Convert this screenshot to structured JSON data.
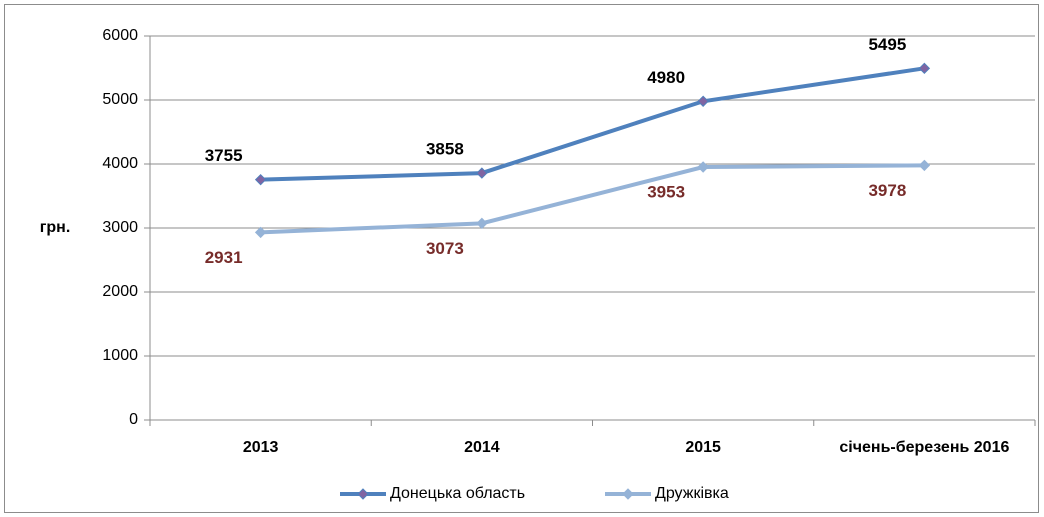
{
  "chart_data": {
    "type": "line",
    "y_label": "грн.",
    "categories": [
      "2013",
      "2014",
      "2015",
      "січень-березень 2016"
    ],
    "series": [
      {
        "name": "Донецька область",
        "color": "#4f81bd",
        "marker_color": "#8064a2",
        "label_color": "#000000",
        "values": [
          3755,
          3858,
          4980,
          5495
        ]
      },
      {
        "name": "Дружківка",
        "color": "#95b3d7",
        "marker_color": "#95b3d7",
        "label_color": "#772c2a",
        "values": [
          2931,
          3073,
          3953,
          3978
        ]
      }
    ],
    "ylim": [
      0,
      6000
    ],
    "yticks": [
      0,
      1000,
      2000,
      3000,
      4000,
      5000,
      6000
    ],
    "grid": true,
    "legend": "bottom"
  }
}
